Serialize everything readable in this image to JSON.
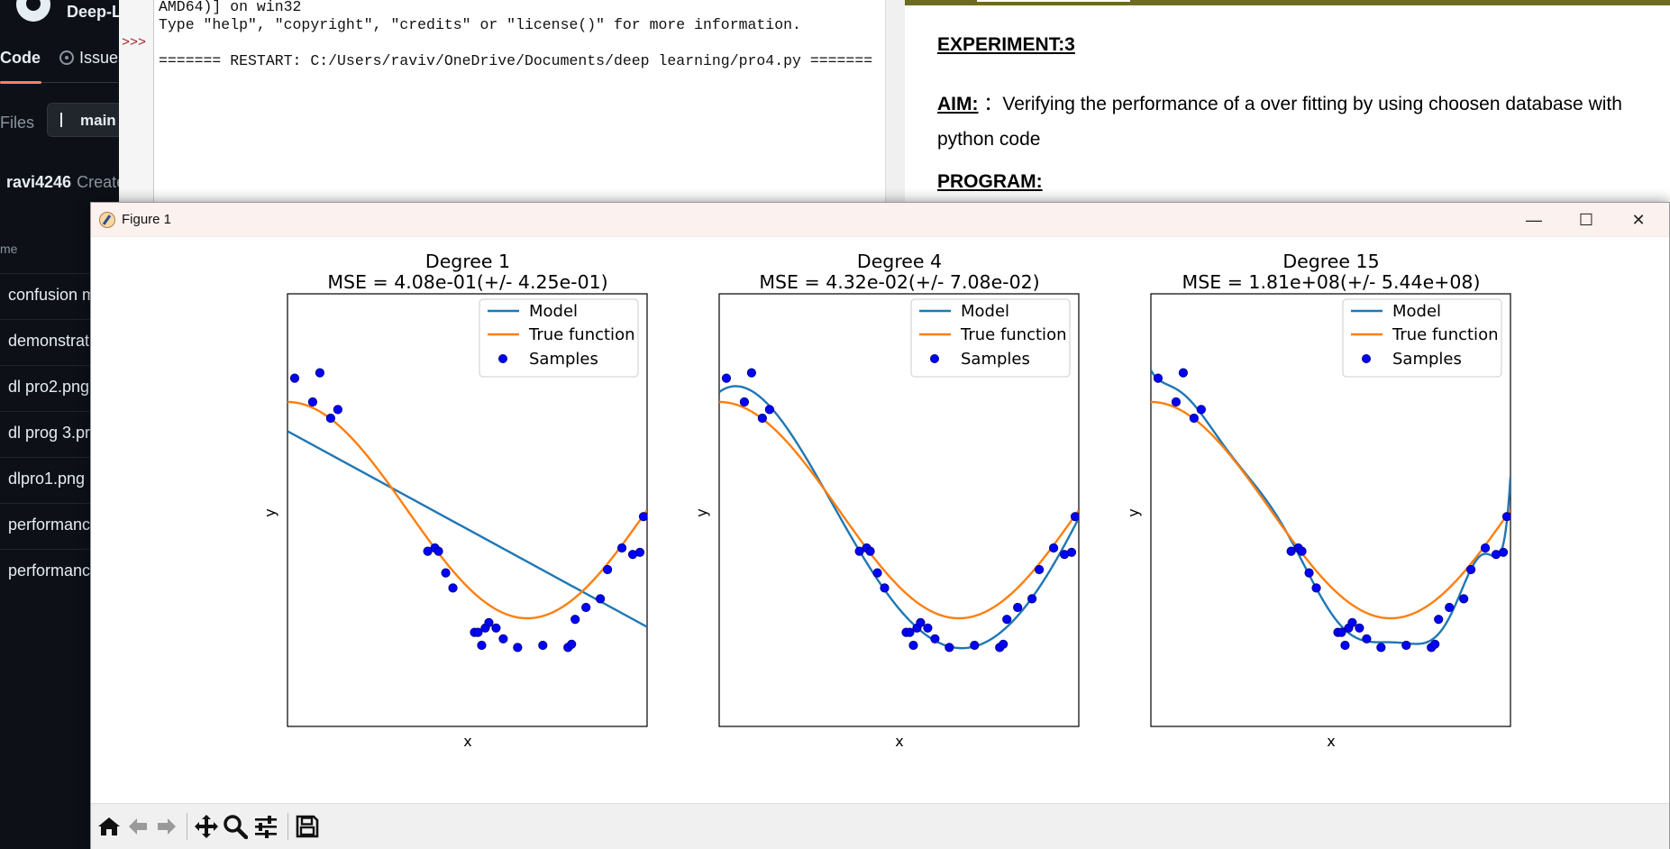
{
  "github": {
    "repo_name": "Deep-L",
    "tab_code": "Code",
    "tab_issues": "Issues",
    "files_label": "Files",
    "branch": "main",
    "commit_user": "ravi4246",
    "commit_msg": "Create",
    "name_header": "me",
    "files": [
      "confusion m",
      "demonstrat",
      "dl pro2.png",
      "dl prog 3.pr",
      "dlpro1.png",
      "performance",
      "performance"
    ]
  },
  "shell": {
    "prompt": ">>>",
    "line1": "AMD64)] on win32",
    "line2": "Type \"help\", \"copyright\", \"credits\" or \"license()\" for more information.",
    "line3": "",
    "line4": "======= RESTART: C:/Users/raviv/OneDrive/Documents/deep learning/pro4.py ======="
  },
  "document": {
    "experiment": "EXPERIMENT:3",
    "aim_label": "AIM:",
    "aim_text": "Verifying the performance of a over fitting by using choosen database with python code",
    "program_label": "PROGRAM:"
  },
  "figure_window": {
    "title": "Figure 1",
    "minimize": "—",
    "maximize": "☐",
    "close": "✕"
  },
  "toolbar": [
    "home-icon",
    "back-icon",
    "forward-icon",
    "pan-icon",
    "zoom-icon",
    "configure-subplots-icon",
    "save-icon"
  ],
  "colors": {
    "model": "#1f77b4",
    "true_function": "#ff7f0e",
    "samples_fill": "#0000ff",
    "samples_edge": "#00008b"
  },
  "chart_data": [
    {
      "type": "line",
      "title": "Degree 1",
      "subtitle": "MSE = 4.08e-01(+/- 4.25e-01)",
      "xlabel": "x",
      "ylabel": "y",
      "xlim": [
        0,
        1
      ],
      "ylim": [
        -2,
        2
      ],
      "degree": 1,
      "legend": [
        "Model",
        "True function",
        "Samples"
      ],
      "legend_position": "upper right",
      "series": [
        {
          "name": "Model",
          "x": [
            0,
            1
          ],
          "y": [
            0.73,
            -1.08
          ]
        },
        {
          "name": "True function",
          "x": [
            0,
            0.05,
            0.1,
            0.15,
            0.2,
            0.25,
            0.3,
            0.35,
            0.4,
            0.45,
            0.5,
            0.55,
            0.6,
            0.65,
            0.7,
            0.75,
            0.8,
            0.85,
            0.9,
            0.95,
            1
          ],
          "y": [
            1.0,
            0.988,
            0.951,
            0.891,
            0.809,
            0.707,
            0.588,
            0.454,
            0.309,
            0.156,
            0.0,
            -0.156,
            -0.309,
            -0.454,
            -0.588,
            -0.707,
            -0.809,
            -0.891,
            -0.951,
            -0.988,
            -1.0
          ]
        }
      ],
      "samples": {
        "name": "Samples",
        "x": [
          0.02,
          0.07,
          0.09,
          0.12,
          0.14,
          0.39,
          0.41,
          0.42,
          0.44,
          0.46,
          0.52,
          0.53,
          0.54,
          0.55,
          0.56,
          0.58,
          0.6,
          0.64,
          0.71,
          0.78,
          0.79,
          0.8,
          0.83,
          0.87,
          0.89,
          0.93,
          0.96,
          0.98,
          0.99
        ],
        "y": [
          1.22,
          1.0,
          1.27,
          0.85,
          0.93,
          -0.38,
          -0.35,
          -0.38,
          -0.58,
          -0.72,
          -1.13,
          -1.13,
          -1.25,
          -1.09,
          -1.04,
          -1.09,
          -1.19,
          -1.27,
          -1.25,
          -1.27,
          -1.24,
          -1.01,
          -0.9,
          -0.82,
          -0.55,
          -0.35,
          -0.41,
          -0.39,
          -0.06
        ]
      }
    },
    {
      "type": "line",
      "title": "Degree 4",
      "subtitle": "MSE = 4.32e-02(+/- 7.08e-02)",
      "xlabel": "x",
      "ylabel": "y",
      "xlim": [
        0,
        1
      ],
      "ylim": [
        -2,
        2
      ],
      "degree": 4,
      "legend": [
        "Model",
        "True function",
        "Samples"
      ],
      "legend_position": "upper right"
    },
    {
      "type": "line",
      "title": "Degree 15",
      "subtitle": "MSE = 1.81e+08(+/- 5.44e+08)",
      "xlabel": "x",
      "ylabel": "y",
      "xlim": [
        0,
        1
      ],
      "ylim": [
        -2,
        2
      ],
      "degree": 15,
      "legend": [
        "Model",
        "True function",
        "Samples"
      ],
      "legend_position": "upper right"
    }
  ]
}
